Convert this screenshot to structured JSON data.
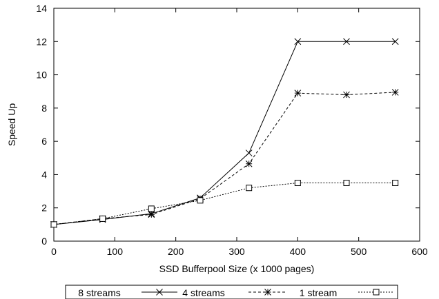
{
  "chart_data": {
    "type": "line",
    "title": "",
    "xlabel": "SSD Bufferpool Size (x 1000 pages)",
    "ylabel": "Speed Up",
    "xlim": [
      0,
      600
    ],
    "ylim": [
      0,
      14
    ],
    "xticks": [
      0,
      100,
      200,
      300,
      400,
      500,
      600
    ],
    "yticks": [
      0,
      2,
      4,
      6,
      8,
      10,
      12,
      14
    ],
    "grid": false,
    "legend_position": "bottom",
    "x": [
      0,
      80,
      160,
      240,
      320,
      400,
      480,
      560
    ],
    "series": [
      {
        "name": "8 streams",
        "marker": "x",
        "line_style": "solid",
        "values": [
          1.0,
          1.3,
          1.65,
          2.6,
          5.3,
          12.0,
          12.0,
          12.0
        ]
      },
      {
        "name": "4 streams",
        "marker": "asterisk",
        "line_style": "dashed",
        "values": [
          1.0,
          1.35,
          1.6,
          2.55,
          4.65,
          8.9,
          8.8,
          8.95
        ]
      },
      {
        "name": "1 stream",
        "marker": "square",
        "line_style": "dotted",
        "values": [
          1.0,
          1.35,
          1.95,
          2.45,
          3.2,
          3.5,
          3.5,
          3.5
        ]
      }
    ]
  }
}
